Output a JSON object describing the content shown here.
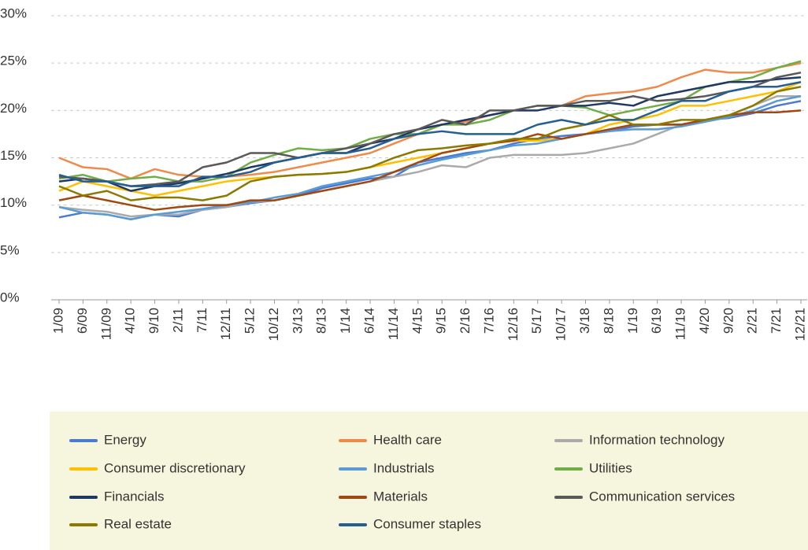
{
  "chart_data": {
    "type": "line",
    "categories": [
      "1/09",
      "6/09",
      "11/09",
      "4/10",
      "9/10",
      "2/11",
      "7/11",
      "12/11",
      "5/12",
      "10/12",
      "3/13",
      "8/13",
      "1/14",
      "6/14",
      "11/14",
      "4/15",
      "9/15",
      "2/16",
      "7/16",
      "12/16",
      "5/17",
      "10/17",
      "3/18",
      "8/18",
      "1/19",
      "6/19",
      "11/19",
      "4/20",
      "9/20",
      "2/21",
      "7/21",
      "12/21"
    ],
    "ylim": [
      0,
      30
    ],
    "yticks": [
      {
        "value": 0,
        "label": "0%"
      },
      {
        "value": 5,
        "label": "5%"
      },
      {
        "value": 10,
        "label": "10%"
      },
      {
        "value": 15,
        "label": "15%"
      },
      {
        "value": 20,
        "label": "20%"
      },
      {
        "value": 25,
        "label": "25%"
      },
      {
        "value": 30,
        "label": "30%"
      }
    ],
    "grid": true,
    "legend": "bottom",
    "series": [
      {
        "name": "Energy",
        "color": "#4a7bd0",
        "values": [
          8.7,
          9.2,
          9,
          8.5,
          9,
          8.8,
          9.5,
          9.8,
          10.2,
          10.5,
          11,
          11.8,
          12.3,
          12.8,
          13,
          14.5,
          15,
          15.5,
          15.8,
          16.5,
          17,
          17.3,
          17.5,
          17.8,
          18.3,
          18.5,
          18.5,
          19,
          19.2,
          19.7,
          20.5,
          21
        ]
      },
      {
        "name": "Health care",
        "color": "#f08a4b",
        "values": [
          15,
          14,
          13.8,
          12.8,
          13.8,
          13.2,
          13,
          13,
          13.2,
          13.5,
          14,
          14.5,
          15,
          15.5,
          16.5,
          17.5,
          18.5,
          18.8,
          19.5,
          20,
          20.5,
          20.5,
          21.5,
          21.8,
          22,
          22.5,
          23.5,
          24.3,
          24,
          24,
          24.5,
          25
        ]
      },
      {
        "name": "Information technology",
        "color": "#aaaaaa",
        "values": [
          9.8,
          9.5,
          9.3,
          8.8,
          9,
          9,
          9.5,
          9.8,
          10.3,
          10.5,
          11,
          11.5,
          12,
          12.5,
          13,
          13.5,
          14.2,
          14,
          15,
          15.3,
          15.3,
          15.3,
          15.5,
          16,
          16.5,
          17.5,
          18.5,
          19,
          19.5,
          20.5,
          21.5,
          21.5
        ]
      },
      {
        "name": "Consumer discretionary",
        "color": "#ffc000",
        "values": [
          11.5,
          12.5,
          12,
          11.5,
          11,
          11.5,
          12,
          12.5,
          12.8,
          13,
          13.2,
          13.3,
          13.5,
          14,
          14.5,
          15,
          15.5,
          16,
          16.5,
          16.8,
          16.8,
          17,
          17.5,
          18.5,
          19,
          19.5,
          20.5,
          20.5,
          21,
          21.5,
          22,
          23
        ]
      },
      {
        "name": "Industrials",
        "color": "#5b9bd5",
        "values": [
          9.8,
          9.2,
          9,
          8.5,
          9,
          9.3,
          9.6,
          10,
          10.3,
          10.8,
          11.2,
          12,
          12.5,
          13,
          13.5,
          14.2,
          14.8,
          15.3,
          15.8,
          16.3,
          16.5,
          17,
          17.5,
          17.8,
          18,
          18,
          18.3,
          18.8,
          19.3,
          20,
          21,
          21.5
        ]
      },
      {
        "name": "Utilities",
        "color": "#70ad47",
        "values": [
          12.8,
          13.2,
          12.5,
          12.8,
          13,
          12.5,
          12.5,
          13,
          14.5,
          15.3,
          16,
          15.8,
          16,
          17,
          17.5,
          17.5,
          18.5,
          18.5,
          19,
          20,
          20.5,
          20.5,
          20.3,
          19.5,
          20,
          20.5,
          21,
          22.5,
          23,
          23.5,
          24.5,
          25.2
        ]
      },
      {
        "name": "Financials",
        "color": "#1f3864",
        "values": [
          12.5,
          12.8,
          12.5,
          11.5,
          12,
          12.3,
          12.8,
          13.3,
          14,
          14.5,
          15,
          15.5,
          15.5,
          16.5,
          17,
          18,
          18.5,
          19,
          19.5,
          20,
          20,
          20.5,
          20.5,
          20.8,
          20.5,
          21.5,
          22,
          22.5,
          23,
          23,
          23.3,
          23.5
        ]
      },
      {
        "name": "Materials",
        "color": "#a0480f",
        "values": [
          10.5,
          11,
          10.5,
          10,
          9.5,
          9.8,
          10,
          10,
          10.5,
          10.5,
          11,
          11.5,
          12,
          12.5,
          13.5,
          14.5,
          15.5,
          16,
          16.5,
          16.8,
          17.5,
          17,
          17.5,
          18,
          18.5,
          18.5,
          18.5,
          19,
          19.5,
          19.8,
          19.8,
          20
        ]
      },
      {
        "name": "Communication services",
        "color": "#595959",
        "values": [
          13,
          12.8,
          12.5,
          12,
          12.2,
          12.5,
          14,
          14.5,
          15.5,
          15.5,
          15,
          15.5,
          16,
          16.5,
          17.5,
          18,
          19,
          18.5,
          20,
          20,
          20.5,
          20.5,
          21,
          21,
          21.5,
          21,
          21.2,
          21.5,
          22,
          22.5,
          23.5,
          24
        ]
      },
      {
        "name": "Real estate",
        "color": "#8c7a00",
        "values": [
          12,
          11,
          11.5,
          10.5,
          10.8,
          10.8,
          10.5,
          11,
          12.5,
          13,
          13.2,
          13.3,
          13.5,
          14,
          15,
          15.8,
          16,
          16.3,
          16.5,
          17,
          17,
          18,
          18.5,
          19.5,
          18.5,
          18.5,
          19,
          19,
          19.5,
          20.5,
          22,
          22.5
        ]
      },
      {
        "name": "Consumer staples",
        "color": "#255e91",
        "values": [
          13.2,
          12.5,
          12.5,
          12,
          12,
          12,
          13,
          13,
          13.5,
          14.5,
          15,
          15.5,
          15.5,
          16,
          17,
          17.5,
          17.8,
          17.5,
          17.5,
          17.5,
          18.5,
          19,
          18.5,
          19,
          19,
          20,
          21,
          21,
          22,
          22.5,
          22.5,
          23
        ]
      }
    ]
  }
}
